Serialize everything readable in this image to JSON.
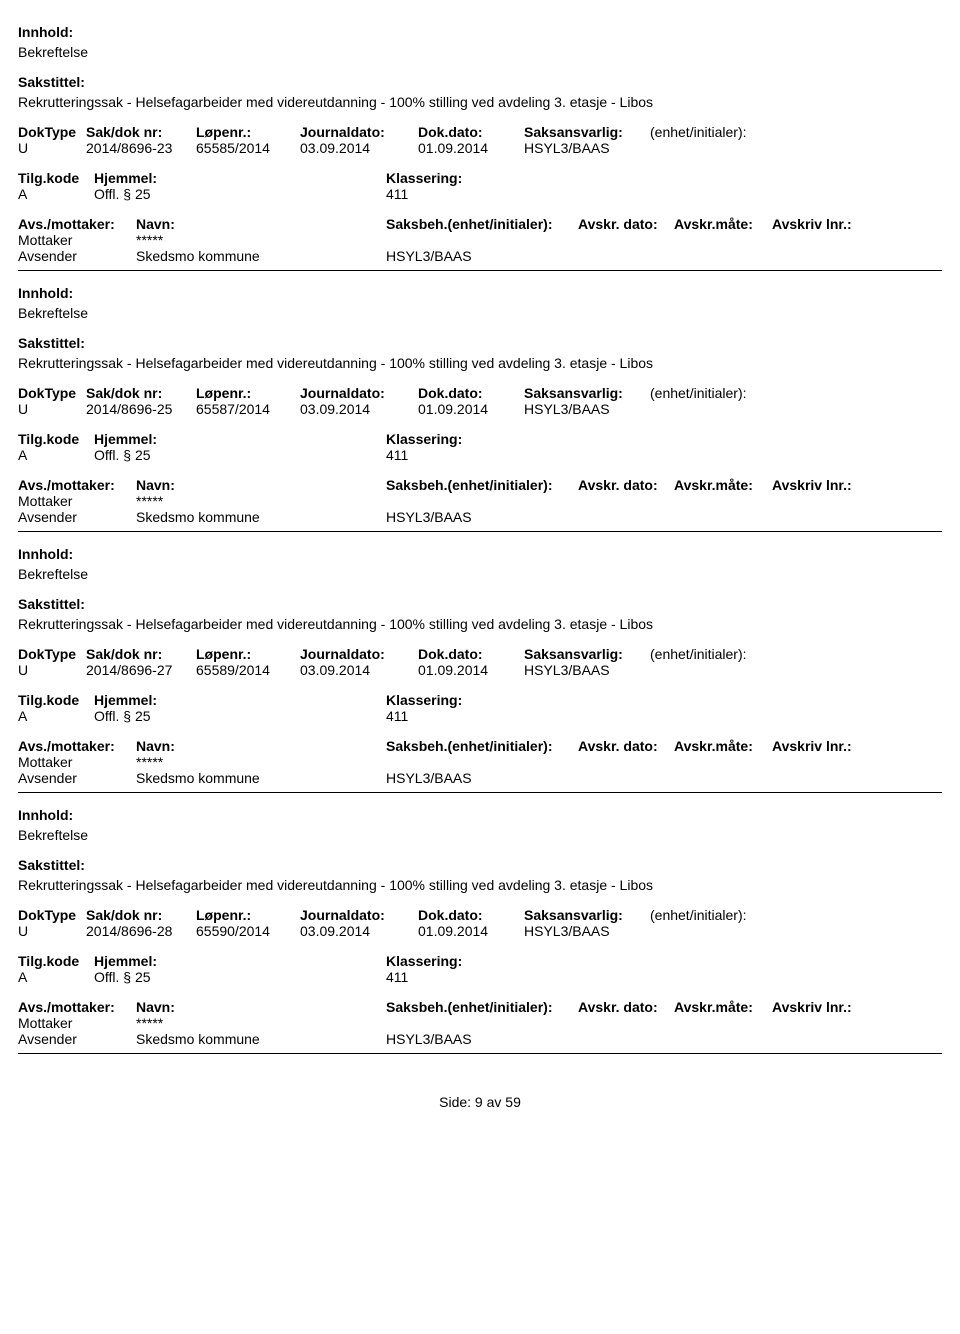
{
  "labels": {
    "innhold": "Innhold:",
    "sakstittel": "Sakstittel:",
    "doktype": "DokType",
    "sakdoknr": "Sak/dok nr:",
    "lopenr": "Løpenr.:",
    "journaldato": "Journaldato:",
    "dokdato": "Dok.dato:",
    "saksansvarlig": "Saksansvarlig:",
    "enhet": "(enhet/initialer):",
    "tilgkode": "Tilg.kode",
    "hjemmel": "Hjemmel:",
    "klassering": "Klassering:",
    "avsmottaker": "Avs./mottaker:",
    "navn": "Navn:",
    "saksbeh": "Saksbeh.(enhet/initialer):",
    "avskrdato": "Avskr. dato:",
    "avskrmaate": "Avskr.måte:",
    "avskrivlnr": "Avskriv lnr.:",
    "mottaker": "Mottaker",
    "avsender": "Avsender"
  },
  "records": [
    {
      "innhold_val": "Bekreftelse",
      "sakstittel_val": "Rekrutteringssak - Helsefagarbeider med videreutdanning - 100% stilling ved avdeling 3. etasje - Libos",
      "doktype": "U",
      "sakdok": "2014/8696-23",
      "lopenr": "65585/2014",
      "journaldato": "03.09.2014",
      "dokdato": "01.09.2014",
      "saksansvarlig": "HSYL3/BAAS",
      "tilgkode": "A",
      "hjemmel": "Offl. § 25",
      "klassering": "411",
      "mottaker_navn": "*****",
      "avsender_navn": "Skedsmo kommune",
      "avsender_code": "HSYL3/BAAS"
    },
    {
      "innhold_val": "Bekreftelse",
      "sakstittel_val": "Rekrutteringssak - Helsefagarbeider med videreutdanning - 100% stilling ved avdeling 3. etasje - Libos",
      "doktype": "U",
      "sakdok": "2014/8696-25",
      "lopenr": "65587/2014",
      "journaldato": "03.09.2014",
      "dokdato": "01.09.2014",
      "saksansvarlig": "HSYL3/BAAS",
      "tilgkode": "A",
      "hjemmel": "Offl. § 25",
      "klassering": "411",
      "mottaker_navn": "*****",
      "avsender_navn": "Skedsmo kommune",
      "avsender_code": "HSYL3/BAAS"
    },
    {
      "innhold_val": "Bekreftelse",
      "sakstittel_val": "Rekrutteringssak - Helsefagarbeider med videreutdanning - 100% stilling ved avdeling 3. etasje - Libos",
      "doktype": "U",
      "sakdok": "2014/8696-27",
      "lopenr": "65589/2014",
      "journaldato": "03.09.2014",
      "dokdato": "01.09.2014",
      "saksansvarlig": "HSYL3/BAAS",
      "tilgkode": "A",
      "hjemmel": "Offl. § 25",
      "klassering": "411",
      "mottaker_navn": "*****",
      "avsender_navn": "Skedsmo kommune",
      "avsender_code": "HSYL3/BAAS"
    },
    {
      "innhold_val": "Bekreftelse",
      "sakstittel_val": "Rekrutteringssak - Helsefagarbeider med videreutdanning - 100% stilling ved avdeling 3. etasje - Libos",
      "doktype": "U",
      "sakdok": "2014/8696-28",
      "lopenr": "65590/2014",
      "journaldato": "03.09.2014",
      "dokdato": "01.09.2014",
      "saksansvarlig": "HSYL3/BAAS",
      "tilgkode": "A",
      "hjemmel": "Offl. § 25",
      "klassering": "411",
      "mottaker_navn": "*****",
      "avsender_navn": "Skedsmo kommune",
      "avsender_code": "HSYL3/BAAS"
    }
  ],
  "footer": "Side: 9 av 59"
}
